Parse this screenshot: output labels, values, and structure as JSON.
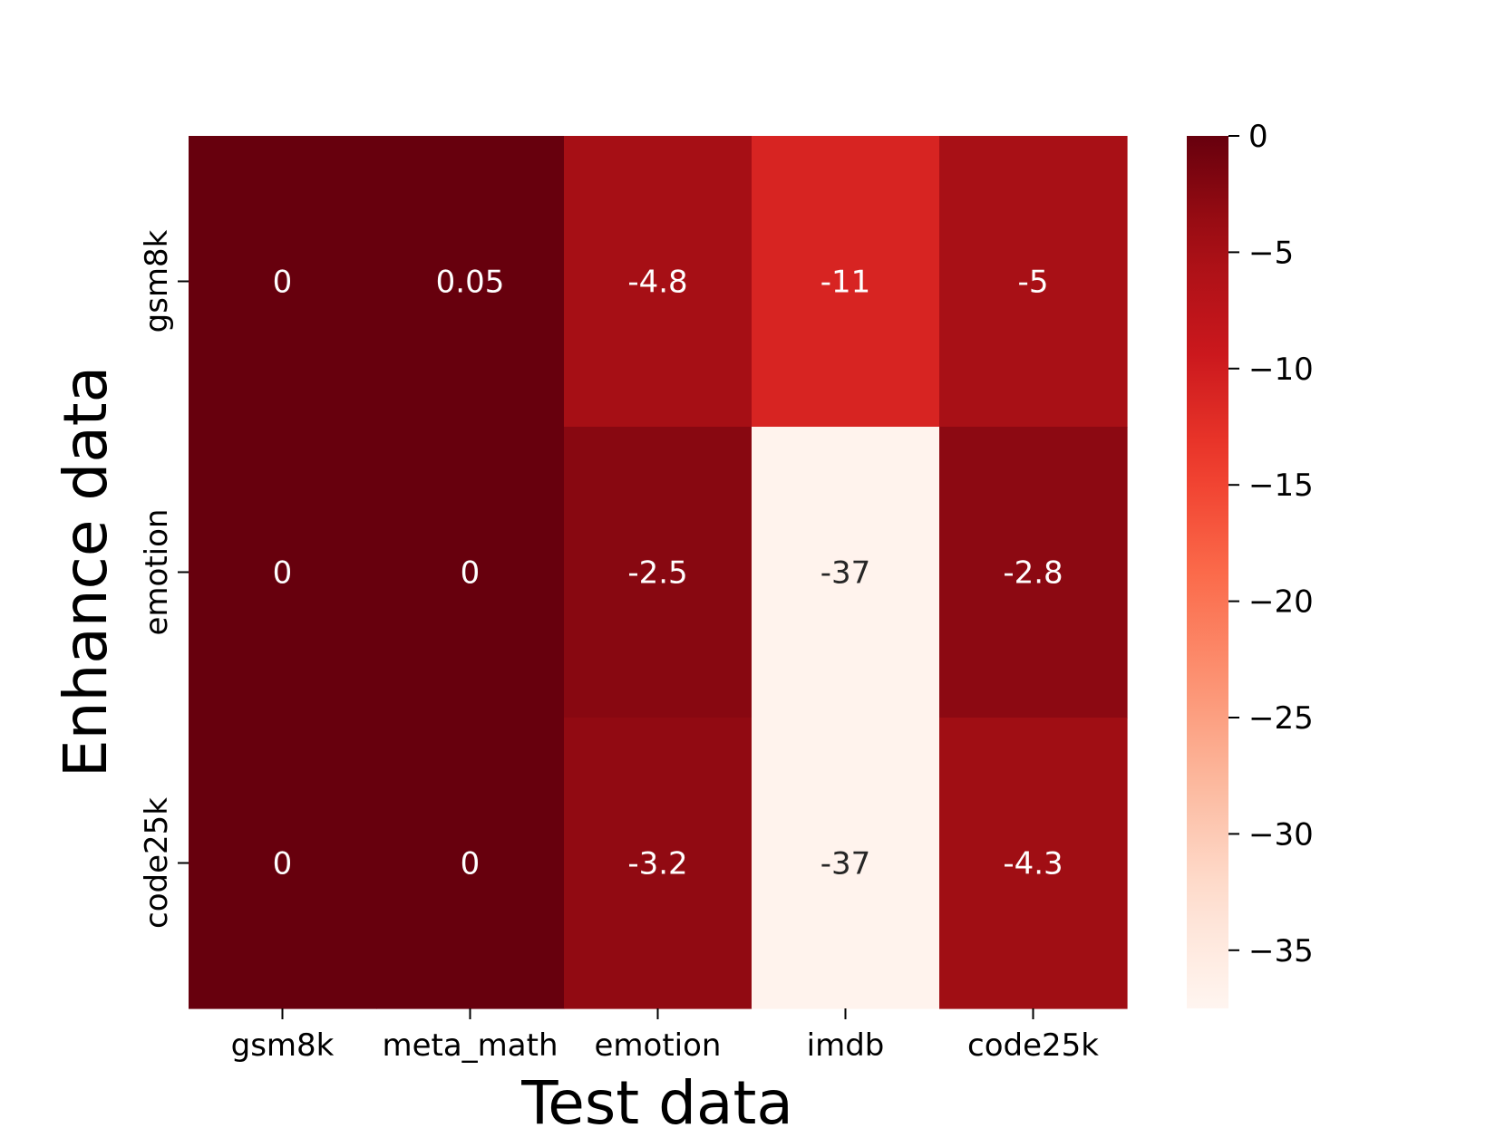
{
  "chart_data": {
    "type": "heatmap",
    "title": "",
    "xlabel": "Test data",
    "ylabel": "Enhance data",
    "x_categories": [
      "gsm8k",
      "meta_math",
      "emotion",
      "imdb",
      "code25k"
    ],
    "y_categories": [
      "gsm8k",
      "emotion",
      "code25k"
    ],
    "values": [
      [
        0,
        0.05,
        -4.8,
        -11,
        -5
      ],
      [
        0,
        0,
        -2.5,
        -37,
        -2.8
      ],
      [
        0,
        0,
        -3.2,
        -37,
        -4.3
      ]
    ],
    "value_labels": [
      [
        "0",
        "0.05",
        "-4.8",
        "-11",
        "-5"
      ],
      [
        "0",
        "0",
        "-2.5",
        "-37",
        "-2.8"
      ],
      [
        "0",
        "0",
        "-3.2",
        "-37",
        "-4.3"
      ]
    ],
    "colormap": "Reds_r",
    "colorbar": {
      "range": [
        -37.5,
        0
      ],
      "ticks": [
        0,
        -5,
        -10,
        -15,
        -20,
        -25,
        -30,
        -35
      ],
      "tick_labels": [
        "0",
        "−5",
        "−10",
        "−15",
        "−20",
        "−25",
        "−30",
        "−35"
      ],
      "position": "right"
    },
    "label_colors": {
      "dark_cell": "#ffffff",
      "light_cell": "#262626"
    },
    "grid": false,
    "legend": "none"
  }
}
